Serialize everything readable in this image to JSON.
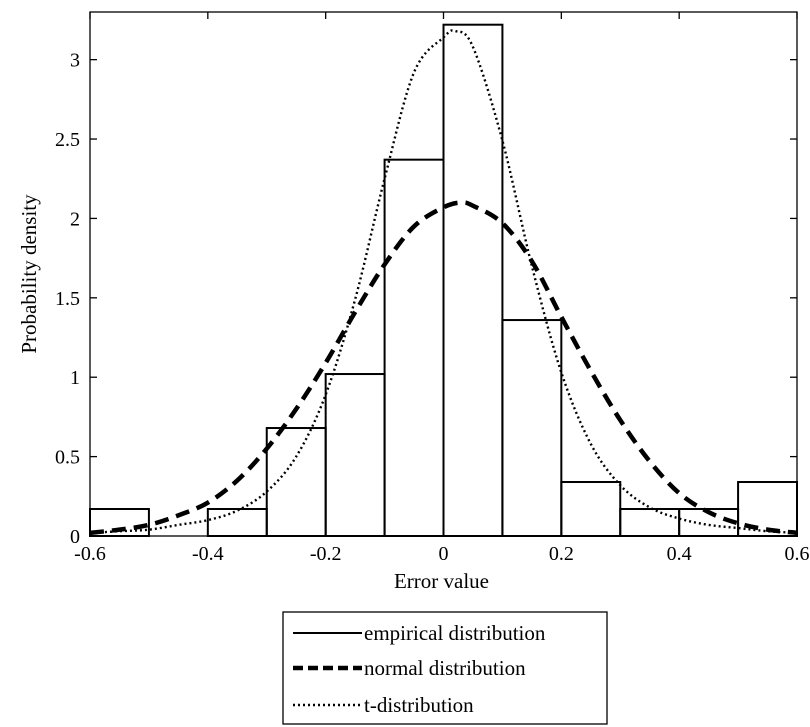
{
  "chart_data": {
    "type": "bar",
    "xlabel": "Error value",
    "ylabel": "Probability density",
    "xlim": [
      -0.6,
      0.6
    ],
    "ylim": [
      0,
      3.3
    ],
    "x_ticks": [
      -0.6,
      -0.4,
      -0.2,
      0,
      0.2,
      0.4,
      0.6
    ],
    "x_tick_labels": [
      "-0.6",
      "-0.4",
      "-0.2",
      "0",
      "0.2",
      "0.4",
      "0.6"
    ],
    "y_ticks": [
      0,
      0.5,
      1,
      1.5,
      2,
      2.5,
      3
    ],
    "y_tick_labels": [
      "0",
      "0.5",
      "1",
      "1.5",
      "2",
      "2.5",
      "3"
    ],
    "grid": false,
    "legend_placement": "below",
    "histogram": {
      "name": "empirical distribution",
      "bin_edges": [
        -0.6,
        -0.5,
        -0.4,
        -0.3,
        -0.2,
        -0.1,
        0,
        0.1,
        0.2,
        0.3,
        0.4,
        0.5,
        0.6
      ],
      "values": [
        0.17,
        0.0,
        0.17,
        0.68,
        1.02,
        2.37,
        3.22,
        1.36,
        0.34,
        0.17,
        0.17,
        0.34
      ]
    },
    "series": [
      {
        "name": "normal distribution",
        "style": "dashed",
        "x": [
          -0.6,
          -0.55,
          -0.5,
          -0.45,
          -0.4,
          -0.35,
          -0.3,
          -0.25,
          -0.2,
          -0.15,
          -0.1,
          -0.05,
          0,
          0.03,
          0.05,
          0.1,
          0.15,
          0.2,
          0.25,
          0.3,
          0.35,
          0.4,
          0.45,
          0.5,
          0.55,
          0.6
        ],
        "values": [
          0.02,
          0.04,
          0.07,
          0.13,
          0.21,
          0.35,
          0.55,
          0.8,
          1.09,
          1.41,
          1.71,
          1.95,
          2.07,
          2.1,
          2.08,
          1.97,
          1.73,
          1.38,
          1.04,
          0.73,
          0.47,
          0.27,
          0.15,
          0.08,
          0.04,
          0.02
        ]
      },
      {
        "name": "t-distribution",
        "style": "dotted",
        "x": [
          -0.6,
          -0.55,
          -0.5,
          -0.45,
          -0.4,
          -0.35,
          -0.3,
          -0.25,
          -0.2,
          -0.15,
          -0.1,
          -0.05,
          0,
          0.02,
          0.05,
          0.1,
          0.15,
          0.2,
          0.25,
          0.3,
          0.35,
          0.4,
          0.45,
          0.5,
          0.55,
          0.6
        ],
        "values": [
          0.02,
          0.03,
          0.04,
          0.07,
          0.1,
          0.16,
          0.28,
          0.5,
          0.89,
          1.49,
          2.25,
          2.92,
          3.14,
          3.18,
          3.08,
          2.49,
          1.7,
          1.03,
          0.58,
          0.32,
          0.18,
          0.11,
          0.07,
          0.05,
          0.03,
          0.02
        ]
      }
    ],
    "legend_entries": [
      "empirical distribution",
      "normal distribution",
      "t-distribution"
    ]
  }
}
